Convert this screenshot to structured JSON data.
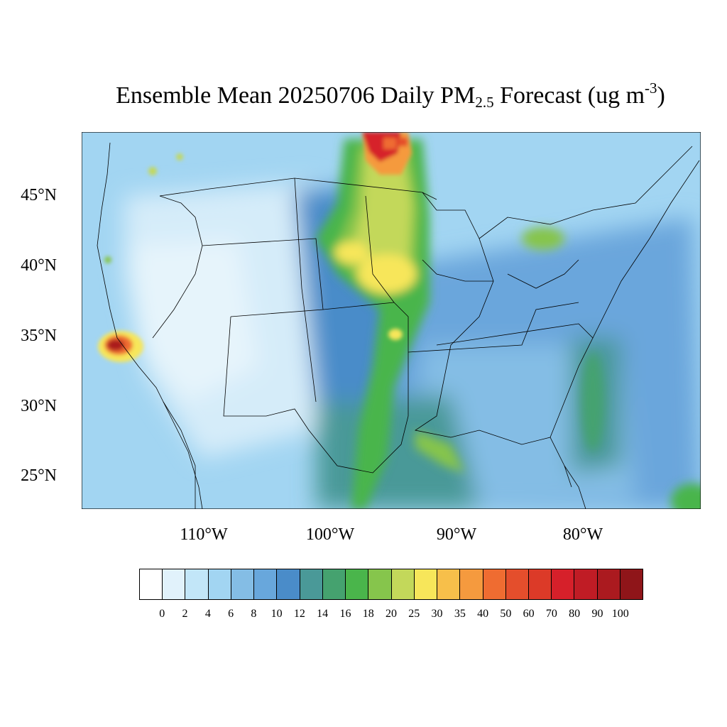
{
  "title": {
    "main": "Ensemble Mean 20250706 Daily PM",
    "sub": "2.5",
    "mid": " Forecast (ug m",
    "sup": "-3",
    "end": ")"
  },
  "map": {
    "lat_labels": [
      "45°N",
      "40°N",
      "35°N",
      "30°N",
      "25°N"
    ],
    "lon_labels": [
      "110°W",
      "100°W",
      "90°W",
      "80°W"
    ],
    "hotspots": [
      "southern-california-fire-plume",
      "north-dakota-manitoba-smoke",
      "ontario-smoke"
    ]
  },
  "colorbar": {
    "levels": [
      "0",
      "2",
      "4",
      "6",
      "8",
      "10",
      "12",
      "14",
      "16",
      "18",
      "20",
      "25",
      "30",
      "35",
      "40",
      "50",
      "60",
      "70",
      "80",
      "90",
      "100"
    ],
    "colors": [
      "#ffffff",
      "#e1f2fb",
      "#c2e6f8",
      "#a2d5f2",
      "#84bde5",
      "#68a7dc",
      "#4a8cc9",
      "#4a9998",
      "#45a26f",
      "#4ab54b",
      "#86c54c",
      "#c3d85a",
      "#f7e65a",
      "#f7bf4a",
      "#f59a3e",
      "#ef6c31",
      "#e44e2c",
      "#dc3a28",
      "#d6202a",
      "#c01c25",
      "#ab1a1f",
      "#8f1519"
    ]
  }
}
